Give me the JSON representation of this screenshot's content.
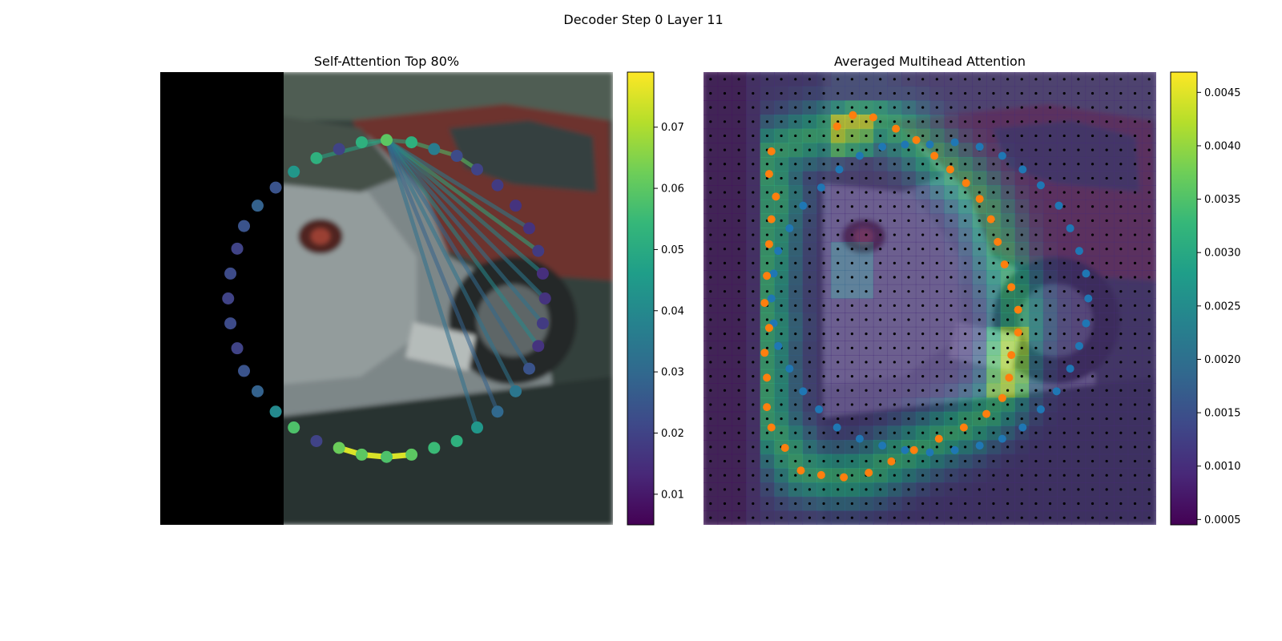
{
  "figure": {
    "title": "Decoder Step 0 Layer 11"
  },
  "colors": {
    "viridis": [
      "#440154",
      "#482878",
      "#3e4989",
      "#31688e",
      "#26828e",
      "#1f9e89",
      "#35b779",
      "#6ece58",
      "#b5de2b",
      "#fde725"
    ],
    "blue_points": "#1f77b4",
    "orange_points": "#ff7f0e",
    "grid_dots": "#000000"
  },
  "chart_data": [
    {
      "type": "scatter",
      "panel": "left",
      "title": "Self-Attention Top 80%",
      "background": "blurred street photo of parked cars, left quarter black (padding)",
      "colorbar": {
        "min": 0.005,
        "max": 0.079,
        "ticks": [
          "0.01",
          "0.02",
          "0.03",
          "0.04",
          "0.05",
          "0.06",
          "0.07"
        ],
        "tick_values": [
          0.01,
          0.02,
          0.03,
          0.04,
          0.05,
          0.06,
          0.07
        ]
      },
      "xlim": [
        0,
        100
      ],
      "ylim": [
        0,
        100
      ],
      "points": [
        {
          "x": 50.0,
          "y": 15.0,
          "v": 0.06
        },
        {
          "x": 55.5,
          "y": 15.5,
          "v": 0.052
        },
        {
          "x": 60.5,
          "y": 17.0,
          "v": 0.036
        },
        {
          "x": 65.5,
          "y": 18.5,
          "v": 0.022
        },
        {
          "x": 70.0,
          "y": 21.5,
          "v": 0.02
        },
        {
          "x": 74.5,
          "y": 25.0,
          "v": 0.018
        },
        {
          "x": 78.5,
          "y": 29.5,
          "v": 0.016
        },
        {
          "x": 81.5,
          "y": 34.5,
          "v": 0.016
        },
        {
          "x": 83.5,
          "y": 39.5,
          "v": 0.018
        },
        {
          "x": 84.5,
          "y": 44.5,
          "v": 0.015
        },
        {
          "x": 85.0,
          "y": 50.0,
          "v": 0.016
        },
        {
          "x": 84.5,
          "y": 55.5,
          "v": 0.018
        },
        {
          "x": 83.5,
          "y": 60.5,
          "v": 0.016
        },
        {
          "x": 81.5,
          "y": 65.5,
          "v": 0.024
        },
        {
          "x": 78.5,
          "y": 70.5,
          "v": 0.034
        },
        {
          "x": 74.5,
          "y": 75.0,
          "v": 0.03
        },
        {
          "x": 70.0,
          "y": 78.5,
          "v": 0.044
        },
        {
          "x": 65.5,
          "y": 81.5,
          "v": 0.052
        },
        {
          "x": 60.5,
          "y": 83.0,
          "v": 0.055
        },
        {
          "x": 55.5,
          "y": 84.5,
          "v": 0.06
        },
        {
          "x": 50.0,
          "y": 85.0,
          "v": 0.058
        },
        {
          "x": 44.5,
          "y": 84.5,
          "v": 0.06
        },
        {
          "x": 39.5,
          "y": 83.0,
          "v": 0.062
        },
        {
          "x": 34.5,
          "y": 81.5,
          "v": 0.02
        },
        {
          "x": 29.5,
          "y": 78.5,
          "v": 0.058
        },
        {
          "x": 25.5,
          "y": 75.0,
          "v": 0.04
        },
        {
          "x": 21.5,
          "y": 70.5,
          "v": 0.028
        },
        {
          "x": 18.5,
          "y": 66.0,
          "v": 0.024
        },
        {
          "x": 17.0,
          "y": 61.0,
          "v": 0.02
        },
        {
          "x": 15.5,
          "y": 55.5,
          "v": 0.022
        },
        {
          "x": 15.0,
          "y": 50.0,
          "v": 0.02
        },
        {
          "x": 15.5,
          "y": 44.5,
          "v": 0.022
        },
        {
          "x": 17.0,
          "y": 39.0,
          "v": 0.02
        },
        {
          "x": 18.5,
          "y": 34.0,
          "v": 0.024
        },
        {
          "x": 21.5,
          "y": 29.5,
          "v": 0.028
        },
        {
          "x": 25.5,
          "y": 25.5,
          "v": 0.024
        },
        {
          "x": 29.5,
          "y": 22.0,
          "v": 0.044
        },
        {
          "x": 34.5,
          "y": 19.0,
          "v": 0.052
        },
        {
          "x": 39.5,
          "y": 17.0,
          "v": 0.02
        },
        {
          "x": 44.5,
          "y": 15.5,
          "v": 0.052
        }
      ],
      "edges": [
        {
          "from": 0,
          "to": 1,
          "v": 0.05
        },
        {
          "from": 1,
          "to": 2,
          "v": 0.055
        },
        {
          "from": 2,
          "to": 3,
          "v": 0.058
        },
        {
          "from": 3,
          "to": 4,
          "v": 0.06
        },
        {
          "from": 0,
          "to": 8,
          "v": 0.05
        },
        {
          "from": 0,
          "to": 9,
          "v": 0.04
        },
        {
          "from": 0,
          "to": 10,
          "v": 0.035
        },
        {
          "from": 0,
          "to": 11,
          "v": 0.033
        },
        {
          "from": 0,
          "to": 12,
          "v": 0.04
        },
        {
          "from": 0,
          "to": 13,
          "v": 0.03
        },
        {
          "from": 0,
          "to": 14,
          "v": 0.033
        },
        {
          "from": 0,
          "to": 15,
          "v": 0.028
        },
        {
          "from": 0,
          "to": 16,
          "v": 0.032
        },
        {
          "from": 0,
          "to": 7,
          "v": 0.036
        },
        {
          "from": 0,
          "to": 39,
          "v": 0.05
        },
        {
          "from": 0,
          "to": 37,
          "v": 0.048
        },
        {
          "from": 22,
          "to": 21,
          "v": 0.075
        },
        {
          "from": 21,
          "to": 20,
          "v": 0.075
        },
        {
          "from": 20,
          "to": 19,
          "v": 0.075
        }
      ]
    },
    {
      "type": "heatmap",
      "panel": "right",
      "title": "Averaged Multihead Attention",
      "background": "same street photo overlaid with viridis attention heatmap",
      "colorbar": {
        "min": 0.00045,
        "max": 0.00469,
        "ticks": [
          "0.0005",
          "0.0010",
          "0.0015",
          "0.0020",
          "0.0025",
          "0.0030",
          "0.0035",
          "0.0040",
          "0.0045"
        ],
        "tick_values": [
          0.0005,
          0.001,
          0.0015,
          0.002,
          0.0025,
          0.003,
          0.0035,
          0.004,
          0.0045
        ]
      },
      "grid": {
        "cols": 32,
        "rows": 32
      },
      "xlim": [
        0,
        100
      ],
      "ylim": [
        0,
        100
      ],
      "blue_points": [
        [
          50,
          16
        ],
        [
          55.5,
          15.5
        ],
        [
          61,
          16.5
        ],
        [
          66,
          18.5
        ],
        [
          70.5,
          21.5
        ],
        [
          74.5,
          25
        ],
        [
          78.5,
          29.5
        ],
        [
          81,
          34.5
        ],
        [
          83,
          39.5
        ],
        [
          84.5,
          44.5
        ],
        [
          85,
          50
        ],
        [
          84.5,
          55.5
        ],
        [
          83,
          60.5
        ],
        [
          81,
          65.5
        ],
        [
          78,
          70.5
        ],
        [
          74.5,
          74.5
        ],
        [
          70.5,
          78.5
        ],
        [
          66,
          81
        ],
        [
          61,
          82.5
        ],
        [
          55.5,
          83.5
        ],
        [
          50,
          84
        ],
        [
          44.5,
          83.5
        ],
        [
          39.5,
          82.5
        ],
        [
          34.5,
          81
        ],
        [
          29.5,
          78.5
        ],
        [
          25.5,
          74.5
        ],
        [
          22,
          70.5
        ],
        [
          19,
          65.5
        ],
        [
          16.5,
          60.5
        ],
        [
          15.5,
          55.5
        ],
        [
          15,
          50
        ],
        [
          15.5,
          44.5
        ],
        [
          16.5,
          39.5
        ],
        [
          19,
          34.5
        ],
        [
          22,
          29.5
        ],
        [
          26,
          25.5
        ],
        [
          30,
          21.5
        ],
        [
          34.5,
          18.5
        ],
        [
          39.5,
          16.5
        ],
        [
          44.5,
          16
        ]
      ],
      "orange_points": [
        [
          29.5,
          12
        ],
        [
          33,
          9.5
        ],
        [
          37.5,
          10
        ],
        [
          42.5,
          12.5
        ],
        [
          47,
          15
        ],
        [
          51,
          18.5
        ],
        [
          54.5,
          21.5
        ],
        [
          58,
          24.5
        ],
        [
          61,
          28
        ],
        [
          63.5,
          32.5
        ],
        [
          65,
          37.5
        ],
        [
          66.5,
          42.5
        ],
        [
          68,
          47.5
        ],
        [
          69.5,
          52.5
        ],
        [
          69.5,
          57.5
        ],
        [
          68,
          62.5
        ],
        [
          67.5,
          67.5
        ],
        [
          66,
          72
        ],
        [
          62.5,
          75.5
        ],
        [
          57.5,
          78.5
        ],
        [
          52,
          81
        ],
        [
          46.5,
          83.5
        ],
        [
          41.5,
          86
        ],
        [
          36.5,
          88.5
        ],
        [
          31,
          89.5
        ],
        [
          26,
          89
        ],
        [
          21.5,
          88
        ],
        [
          18,
          83
        ],
        [
          15,
          78.5
        ],
        [
          14,
          74
        ],
        [
          14,
          67.5
        ],
        [
          13.5,
          62
        ],
        [
          14.5,
          56.5
        ],
        [
          13.5,
          51
        ],
        [
          14,
          45
        ],
        [
          14.5,
          38
        ],
        [
          15,
          32.5
        ],
        [
          16,
          27.5
        ],
        [
          14.5,
          22.5
        ],
        [
          15,
          17.5
        ]
      ]
    }
  ]
}
